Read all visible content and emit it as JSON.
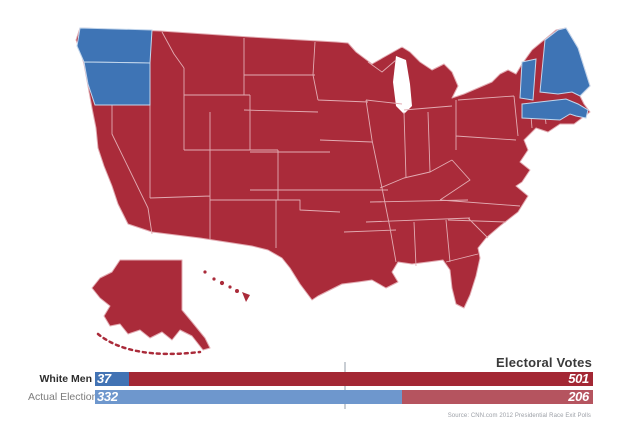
{
  "page": {
    "background": "#ffffff"
  },
  "map": {
    "republican_color": "#AA2B3A",
    "democrat_color": "#3E74B5",
    "red_border_color": "#E2ABB2",
    "blue_border_color": "#C2D6EC",
    "water_color": "#FFFFFF",
    "blue_states": [
      "Washington",
      "Oregon",
      "Vermont",
      "Massachusetts",
      "Maine"
    ]
  },
  "chart": {
    "title": "Electoral Votes",
    "total": 538,
    "majority": 269,
    "rows": [
      {
        "label": "White Men",
        "dem": 37,
        "rep": 501,
        "dem_color": "#4273B4",
        "rep_color": "#A32734"
      },
      {
        "label": "Actual Election",
        "dem": 332,
        "rep": 206,
        "dem_color": "#6E97CD",
        "rep_color": "#B5545F"
      }
    ],
    "source": "Source: CNN.com 2012 Presidential Race Exit Polls"
  },
  "chart_data": {
    "type": "bar",
    "orientation": "horizontal-stacked",
    "title": "Electoral Votes",
    "categories": [
      "White Men",
      "Actual Election"
    ],
    "series": [
      {
        "name": "Democratic (blue)",
        "color": "#4273B4",
        "values": [
          37,
          332
        ]
      },
      {
        "name": "Republican (red)",
        "color": "#A32734",
        "values": [
          501,
          206
        ]
      }
    ],
    "xlim": [
      0,
      538
    ],
    "annotations": [
      "vertical majority marker at 269 of 538"
    ],
    "source": "Source: CNN.com 2012 Presidential Race Exit Polls"
  }
}
